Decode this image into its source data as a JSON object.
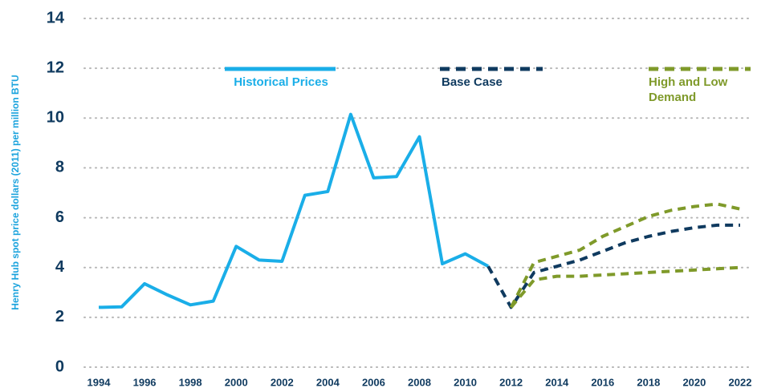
{
  "chart_data": {
    "type": "line",
    "y_label": "Henry Hub spot price dollars (2011) per million BTU",
    "x": [
      1994,
      1995,
      1996,
      1997,
      1998,
      1999,
      2000,
      2001,
      2002,
      2003,
      2004,
      2005,
      2006,
      2007,
      2008,
      2009,
      2010,
      2011,
      2012,
      2013,
      2014,
      2015,
      2016,
      2017,
      2018,
      2019,
      2020,
      2021,
      2022
    ],
    "series": [
      {
        "name": "Historical Prices",
        "color": "#1aaee8",
        "dashed": false,
        "values": [
          2.4,
          2.42,
          3.35,
          2.9,
          2.5,
          2.65,
          4.85,
          4.3,
          4.25,
          6.9,
          7.05,
          10.15,
          7.6,
          7.65,
          9.25,
          4.15,
          4.55,
          4.05,
          null,
          null,
          null,
          null,
          null,
          null,
          null,
          null,
          null,
          null,
          null
        ]
      },
      {
        "name": "Base Case",
        "color": "#0f3a5f",
        "dashed": true,
        "values": [
          null,
          null,
          null,
          null,
          null,
          null,
          null,
          null,
          null,
          null,
          null,
          null,
          null,
          null,
          null,
          null,
          null,
          4.05,
          2.4,
          3.8,
          4.05,
          4.3,
          4.65,
          5.0,
          5.25,
          5.45,
          5.6,
          5.7,
          5.7
        ]
      },
      {
        "name": "High and Low Demand",
        "color": "#7f9a2a",
        "dashed": true,
        "values": [
          null,
          null,
          null,
          null,
          null,
          null,
          null,
          null,
          null,
          null,
          null,
          null,
          null,
          null,
          null,
          null,
          null,
          null,
          2.4,
          4.2,
          4.45,
          4.7,
          5.25,
          5.65,
          6.05,
          6.3,
          6.45,
          6.55,
          6.35
        ],
        "values_low": [
          null,
          null,
          null,
          null,
          null,
          null,
          null,
          null,
          null,
          null,
          null,
          null,
          null,
          null,
          null,
          null,
          null,
          null,
          2.4,
          3.5,
          3.65,
          3.65,
          3.7,
          3.75,
          3.8,
          3.85,
          3.9,
          3.95,
          4.0
        ]
      }
    ],
    "xlim": [
      1994,
      2022
    ],
    "xticks": [
      1994,
      1996,
      1998,
      2000,
      2002,
      2004,
      2006,
      2008,
      2010,
      2012,
      2014,
      2016,
      2018,
      2020,
      2022
    ],
    "ylim": [
      0,
      14
    ],
    "yticks": [
      0,
      2,
      4,
      6,
      8,
      10,
      12,
      14
    ],
    "grid": true
  }
}
